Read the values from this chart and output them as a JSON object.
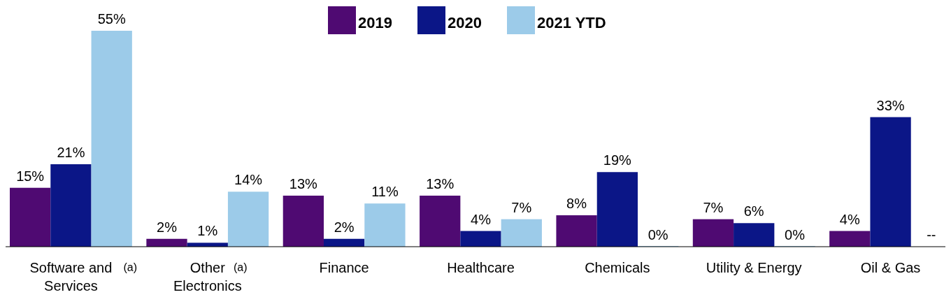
{
  "chart_data": {
    "type": "bar",
    "categories": [
      "Software and$^{(a)}$ Services",
      "Other$^{(a)}$ Electronics",
      "Finance",
      "Healthcare",
      "Chemicals",
      "Utility & Energy",
      "Oil & Gas"
    ],
    "series": [
      {
        "name": "2019",
        "color": "#4f0a72",
        "values": [
          15,
          2,
          13,
          13,
          8,
          7,
          4
        ],
        "value_labels": [
          "15%",
          "2%",
          "13%",
          "13%",
          "8%",
          "7%",
          "4%"
        ]
      },
      {
        "name": "2020",
        "color": "#0b1687",
        "values": [
          21,
          1,
          2,
          4,
          19,
          6,
          33
        ],
        "value_labels": [
          "21%",
          "1%",
          "2%",
          "4%",
          "19%",
          "6%",
          "33%"
        ]
      },
      {
        "name": "2021 YTD",
        "color": "#9ccbe9",
        "values": [
          55,
          14,
          11,
          7,
          0,
          0,
          null
        ],
        "value_labels": [
          "55%",
          "14%",
          "11%",
          "7%",
          "0%",
          "0%",
          "--"
        ]
      }
    ],
    "legend": "top"
  }
}
